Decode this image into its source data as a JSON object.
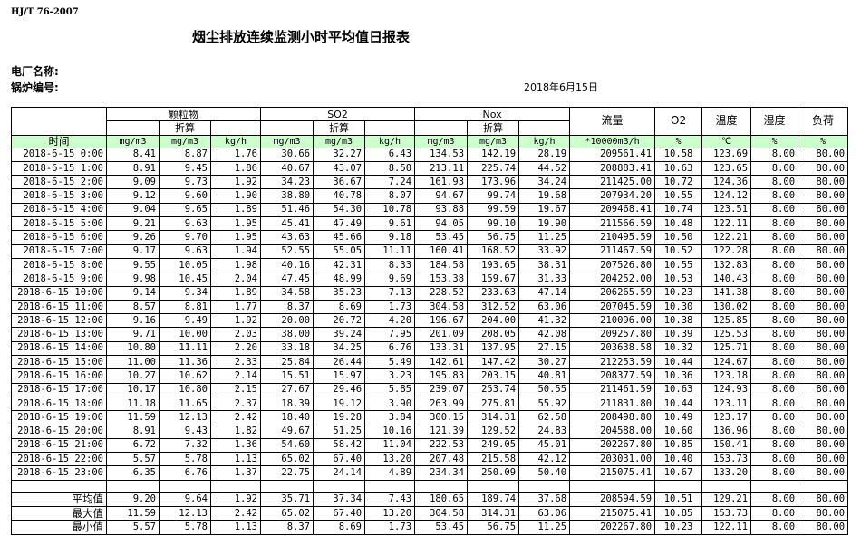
{
  "standard": "HJ/T  76-2007",
  "title": "烟尘排放连续监测小时平均值日报表",
  "plant_label": "电厂名称:",
  "boiler_label": "锅炉编号:",
  "report_date": "2018年6月15日",
  "header": {
    "groups": [
      "颗粒物",
      "SO2",
      "Nox"
    ],
    "converted": "折算",
    "flow": "流量",
    "o2": "O2",
    "temperature": "温度",
    "humidity": "湿度",
    "load": "负荷",
    "time": "时间",
    "units": [
      "mg/m3",
      "mg/m3",
      "kg/h",
      "mg/m3",
      "mg/m3",
      "kg/h",
      "mg/m3",
      "mg/m3",
      "kg/h",
      "*10000m3/h",
      "%",
      "℃",
      "%",
      "%"
    ]
  },
  "rows": [
    [
      "2018-6-15 0:00",
      "8.41",
      "8.87",
      "1.76",
      "30.66",
      "32.27",
      "6.43",
      "134.53",
      "142.19",
      "28.19",
      "209561.41",
      "10.58",
      "123.69",
      "8.00",
      "80.00"
    ],
    [
      "2018-6-15 1:00",
      "8.91",
      "9.45",
      "1.86",
      "40.67",
      "43.07",
      "8.50",
      "213.11",
      "225.74",
      "44.52",
      "208883.41",
      "10.63",
      "123.65",
      "8.00",
      "80.00"
    ],
    [
      "2018-6-15 2:00",
      "9.09",
      "9.73",
      "1.92",
      "34.23",
      "36.67",
      "7.24",
      "161.93",
      "173.96",
      "34.24",
      "211425.00",
      "10.72",
      "124.36",
      "8.00",
      "80.00"
    ],
    [
      "2018-6-15 3:00",
      "9.12",
      "9.60",
      "1.90",
      "38.80",
      "40.78",
      "8.07",
      "94.67",
      "99.74",
      "19.68",
      "207934.20",
      "10.55",
      "124.12",
      "8.00",
      "80.00"
    ],
    [
      "2018-6-15 4:00",
      "9.04",
      "9.65",
      "1.89",
      "51.46",
      "54.30",
      "10.78",
      "93.88",
      "99.59",
      "19.67",
      "209468.41",
      "10.74",
      "123.51",
      "8.00",
      "80.00"
    ],
    [
      "2018-6-15 5:00",
      "9.21",
      "9.63",
      "1.95",
      "45.41",
      "47.49",
      "9.61",
      "94.05",
      "99.10",
      "19.90",
      "211566.59",
      "10.48",
      "122.11",
      "8.00",
      "80.00"
    ],
    [
      "2018-6-15 6:00",
      "9.26",
      "9.70",
      "1.95",
      "43.63",
      "45.66",
      "9.18",
      "53.45",
      "56.75",
      "11.25",
      "210495.59",
      "10.50",
      "122.21",
      "8.00",
      "80.00"
    ],
    [
      "2018-6-15 7:00",
      "9.17",
      "9.63",
      "1.94",
      "52.55",
      "55.05",
      "11.11",
      "160.41",
      "168.52",
      "33.92",
      "211467.59",
      "10.52",
      "122.28",
      "8.00",
      "80.00"
    ],
    [
      "2018-6-15 8:00",
      "9.55",
      "10.05",
      "1.98",
      "40.16",
      "42.31",
      "8.33",
      "184.58",
      "193.65",
      "38.31",
      "207526.80",
      "10.55",
      "132.83",
      "8.00",
      "80.00"
    ],
    [
      "2018-6-15 9:00",
      "9.98",
      "10.45",
      "2.04",
      "47.45",
      "48.99",
      "9.69",
      "153.38",
      "159.67",
      "31.33",
      "204252.00",
      "10.53",
      "140.43",
      "8.00",
      "80.00"
    ],
    [
      "2018-6-15 10:00",
      "9.14",
      "9.34",
      "1.89",
      "34.58",
      "35.23",
      "7.13",
      "228.52",
      "233.63",
      "47.14",
      "206265.59",
      "10.23",
      "141.38",
      "8.00",
      "80.00"
    ],
    [
      "2018-6-15 11:00",
      "8.57",
      "8.81",
      "1.77",
      "8.37",
      "8.69",
      "1.73",
      "304.58",
      "312.52",
      "63.06",
      "207045.59",
      "10.30",
      "130.02",
      "8.00",
      "80.00"
    ],
    [
      "2018-6-15 12:00",
      "9.16",
      "9.49",
      "1.92",
      "20.00",
      "20.72",
      "4.20",
      "196.67",
      "204.00",
      "41.32",
      "210096.00",
      "10.38",
      "125.85",
      "8.00",
      "80.00"
    ],
    [
      "2018-6-15 13:00",
      "9.71",
      "10.00",
      "2.03",
      "38.00",
      "39.24",
      "7.95",
      "201.09",
      "208.05",
      "42.08",
      "209257.80",
      "10.39",
      "125.53",
      "8.00",
      "80.00"
    ],
    [
      "2018-6-15 14:00",
      "10.80",
      "11.11",
      "2.20",
      "33.18",
      "34.25",
      "6.76",
      "133.31",
      "137.95",
      "27.15",
      "203638.58",
      "10.32",
      "125.71",
      "8.00",
      "80.00"
    ],
    [
      "2018-6-15 15:00",
      "11.00",
      "11.36",
      "2.33",
      "25.84",
      "26.44",
      "5.49",
      "142.61",
      "147.42",
      "30.27",
      "212253.59",
      "10.44",
      "124.67",
      "8.00",
      "80.00"
    ],
    [
      "2018-6-15 16:00",
      "10.27",
      "10.62",
      "2.14",
      "15.51",
      "15.97",
      "3.23",
      "195.83",
      "203.15",
      "40.81",
      "208377.59",
      "10.36",
      "123.18",
      "8.00",
      "80.00"
    ],
    [
      "2018-6-15 17:00",
      "10.17",
      "10.80",
      "2.15",
      "27.67",
      "29.46",
      "5.85",
      "239.07",
      "253.74",
      "50.55",
      "211461.59",
      "10.63",
      "124.93",
      "8.00",
      "80.00"
    ],
    [
      "2018-6-15 18:00",
      "11.18",
      "11.65",
      "2.37",
      "18.39",
      "19.12",
      "3.90",
      "263.99",
      "275.81",
      "55.92",
      "211831.80",
      "10.44",
      "123.11",
      "8.00",
      "80.00"
    ],
    [
      "2018-6-15 19:00",
      "11.59",
      "12.13",
      "2.42",
      "18.40",
      "19.28",
      "3.84",
      "300.15",
      "314.31",
      "62.58",
      "208498.80",
      "10.49",
      "123.17",
      "8.00",
      "80.00"
    ],
    [
      "2018-6-15 20:00",
      "8.91",
      "9.43",
      "1.82",
      "49.67",
      "51.25",
      "10.16",
      "121.39",
      "129.52",
      "24.83",
      "204588.00",
      "10.60",
      "136.96",
      "8.00",
      "80.00"
    ],
    [
      "2018-6-15 21:00",
      "6.72",
      "7.32",
      "1.36",
      "54.60",
      "58.42",
      "11.04",
      "222.53",
      "249.05",
      "45.01",
      "202267.80",
      "10.85",
      "150.41",
      "8.00",
      "80.00"
    ],
    [
      "2018-6-15 22:00",
      "5.57",
      "5.78",
      "1.13",
      "65.02",
      "67.40",
      "13.20",
      "207.48",
      "215.58",
      "42.12",
      "203031.00",
      "10.40",
      "153.73",
      "8.00",
      "80.00"
    ],
    [
      "2018-6-15 23:00",
      "6.35",
      "6.76",
      "1.37",
      "22.75",
      "24.14",
      "4.89",
      "234.34",
      "250.09",
      "50.40",
      "215075.41",
      "10.67",
      "133.20",
      "8.00",
      "80.00"
    ]
  ],
  "summary": [
    [
      "平均值",
      "9.20",
      "9.64",
      "1.92",
      "35.71",
      "37.34",
      "7.43",
      "180.65",
      "189.74",
      "37.68",
      "208594.59",
      "10.51",
      "129.21",
      "8.00",
      "80.00"
    ],
    [
      "最大值",
      "11.59",
      "12.13",
      "2.42",
      "65.02",
      "67.40",
      "13.20",
      "304.58",
      "314.31",
      "63.06",
      "215075.41",
      "10.85",
      "153.73",
      "8.00",
      "80.00"
    ],
    [
      "最小值",
      "5.57",
      "5.78",
      "1.13",
      "8.37",
      "8.69",
      "1.73",
      "53.45",
      "56.75",
      "11.25",
      "202267.80",
      "10.23",
      "122.11",
      "8.00",
      "80.00"
    ]
  ],
  "colors": {
    "unit_row_bg": "#ccffcc"
  }
}
